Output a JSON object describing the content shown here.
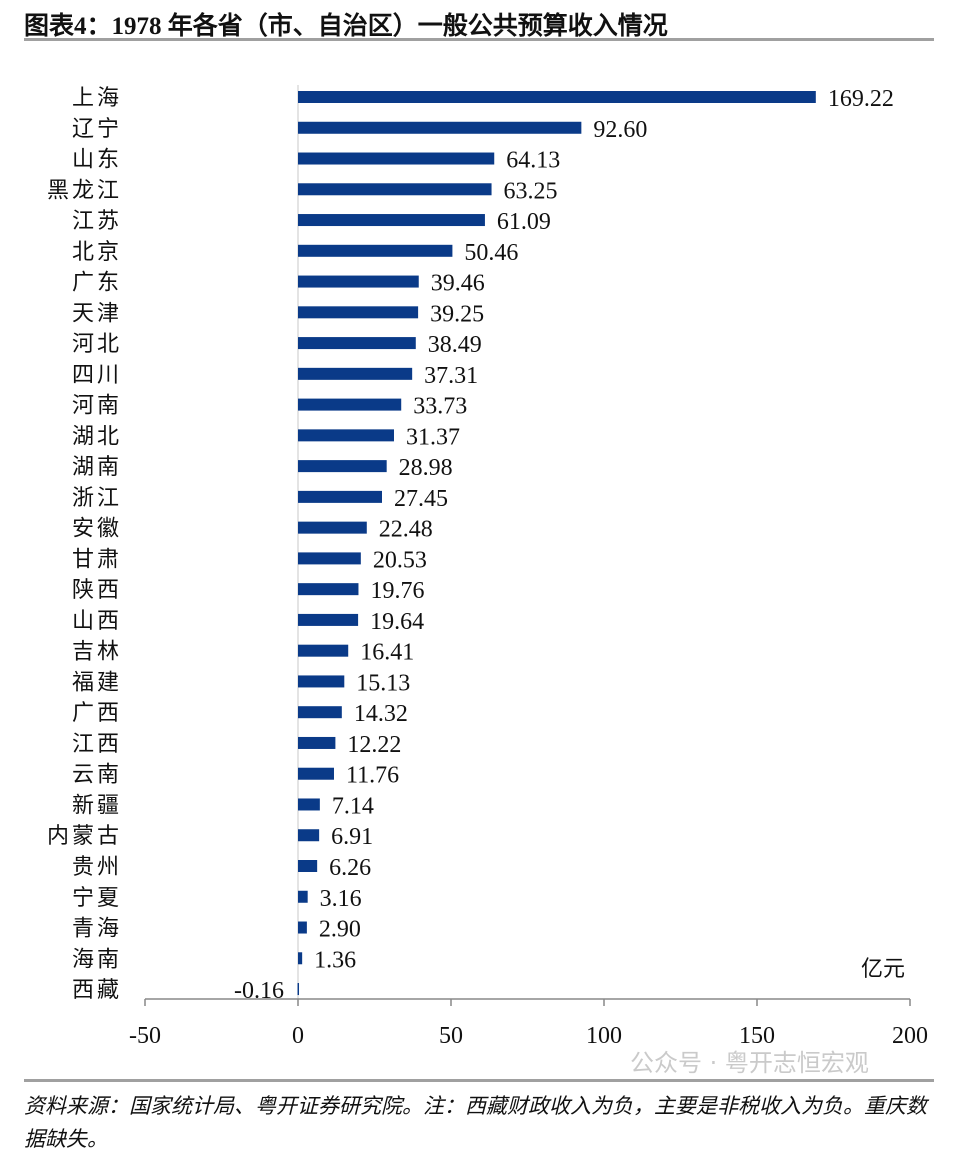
{
  "title": "图表4：1978 年各省（市、自治区）一般公共预算收入情况",
  "source_note": "资料来源：国家统计局、粤开证券研究院。注：西藏财政收入为负，主要是非税收入为负。重庆数据缺失。",
  "watermark": "公众号 · 粤开志恒宏观",
  "chart_data": {
    "type": "bar",
    "orientation": "horizontal",
    "categories": [
      "上海",
      "辽宁",
      "山东",
      "黑龙江",
      "江苏",
      "北京",
      "广东",
      "天津",
      "河北",
      "四川",
      "河南",
      "湖北",
      "湖南",
      "浙江",
      "安徽",
      "甘肃",
      "陕西",
      "山西",
      "吉林",
      "福建",
      "广西",
      "江西",
      "云南",
      "新疆",
      "内蒙古",
      "贵州",
      "宁夏",
      "青海",
      "海南",
      "西藏"
    ],
    "values": [
      169.22,
      92.6,
      64.13,
      63.25,
      61.09,
      50.46,
      39.46,
      39.25,
      38.49,
      37.31,
      33.73,
      31.37,
      28.98,
      27.45,
      22.48,
      20.53,
      19.76,
      19.64,
      16.41,
      15.13,
      14.32,
      12.22,
      11.76,
      7.14,
      6.91,
      6.26,
      3.16,
      2.9,
      1.36,
      -0.16
    ],
    "value_labels": [
      "169.22",
      "92.60",
      "64.13",
      "63.25",
      "61.09",
      "50.46",
      "39.46",
      "39.25",
      "38.49",
      "37.31",
      "33.73",
      "31.37",
      "28.98",
      "27.45",
      "22.48",
      "20.53",
      "19.76",
      "19.64",
      "16.41",
      "15.13",
      "14.32",
      "12.22",
      "11.76",
      "7.14",
      "6.91",
      "6.26",
      "3.16",
      "2.90",
      "1.36",
      "-0.16"
    ],
    "unit": "亿元",
    "xlim": [
      -50,
      200
    ],
    "xticks": [
      "-50",
      "0",
      "50",
      "100",
      "150",
      "200"
    ],
    "bar_color": "#0a3a88",
    "grid": false
  }
}
